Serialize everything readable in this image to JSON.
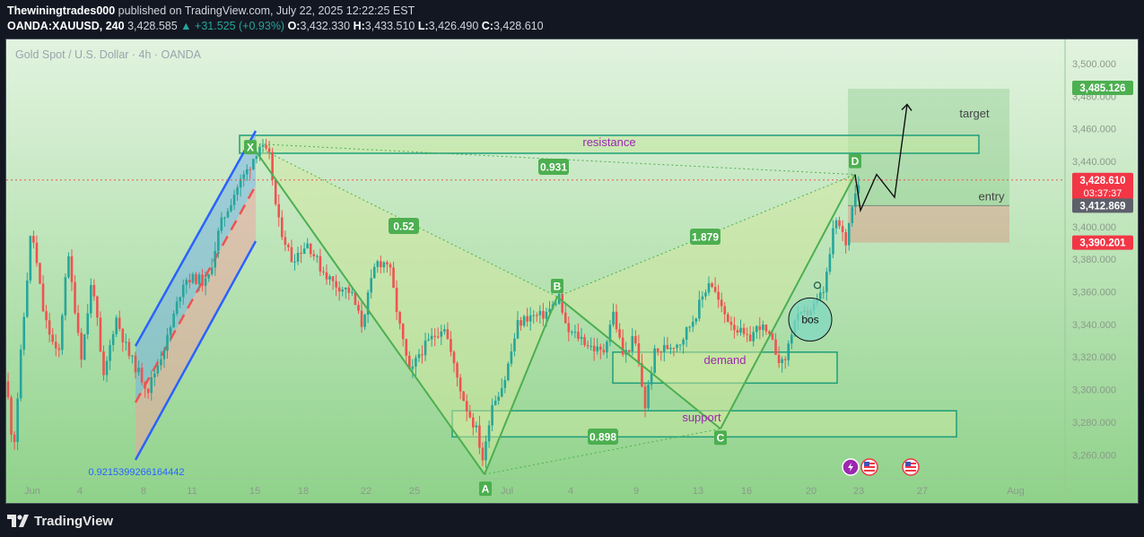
{
  "header": {
    "author": "Thewiningtrades000",
    "published_text": " published on TradingView.com, July 22, 2025 12:22:25 EST",
    "symbol": "OANDA:XAUUSD, 240",
    "last": "3,428.585",
    "change": "▲ +31.525 (+0.93%)",
    "o_label": "O:",
    "o_value": "3,432.330",
    "h_label": "H:",
    "h_value": "3,433.510",
    "l_label": "L:",
    "l_value": "3,426.490",
    "c_label": "C:",
    "c_value": "3,428.610"
  },
  "footer": {
    "brand": "TradingView"
  },
  "colors": {
    "bull": "#26a69a",
    "bear": "#ef5350",
    "pattern": "#4caf50",
    "zone_border": "#1e9e7a",
    "fib": "#2962ff",
    "annotation_purple": "#9c27b0"
  },
  "chart_data": {
    "type": "candlestick",
    "title": "Gold Spot / U.S. Dollar · 4h · OANDA",
    "x_ticks": [
      "Jun",
      "4",
      "8",
      "11",
      "15",
      "18",
      "22",
      "25",
      "Jul",
      "4",
      "9",
      "13",
      "16",
      "20",
      "23",
      "27",
      "Aug"
    ],
    "y_ticks": [
      "3,500.000",
      "3,480.000",
      "3,460.000",
      "3,440.000",
      "3,420.000",
      "3,400.000",
      "3,380.000",
      "3,360.000",
      "3,340.000",
      "3,320.000",
      "3,300.000",
      "3,280.000",
      "3,260.000"
    ],
    "ylim": [
      3245,
      3515
    ],
    "price_tags": [
      {
        "text": "3,485.126",
        "price": 3485.126,
        "color": "#4caf50"
      },
      {
        "text": "3,428.610",
        "sub": "03:37:37",
        "price": 3428.61,
        "color": "#f23645"
      },
      {
        "text": "3,412.869",
        "price": 3412.869,
        "color": "#5d606b"
      },
      {
        "text": "3,390.201",
        "price": 3390.201,
        "color": "#f23645"
      }
    ],
    "current_price": 3428.61,
    "pattern_points": [
      {
        "label": "X",
        "price": 3451
      },
      {
        "label": "A",
        "price": 3248
      },
      {
        "label": "B",
        "price": 3357
      },
      {
        "label": "C",
        "price": 3276
      },
      {
        "label": "D",
        "price": 3432
      }
    ],
    "ratios": [
      "0.931",
      "0.52",
      "1.879",
      "0.898"
    ],
    "fib_channel_label": "0.9215399266164442",
    "zones": [
      {
        "label": "resistance",
        "top": 3456,
        "bottom": 3445
      },
      {
        "label": "demand",
        "top": 3323,
        "bottom": 3304
      },
      {
        "label": "support",
        "top": 3287,
        "bottom": 3271
      }
    ],
    "labels": {
      "target": "target",
      "entry": "entry",
      "bos": "bos"
    },
    "trade": {
      "target": 3485.126,
      "entry": 3412.869,
      "stop": 3390.201
    },
    "candles_start": 3305,
    "candles_path": [
      [
        0,
        3305
      ],
      [
        8,
        3262
      ],
      [
        16,
        3320
      ],
      [
        28,
        3400
      ],
      [
        42,
        3345
      ],
      [
        58,
        3318
      ],
      [
        68,
        3385
      ],
      [
        84,
        3320
      ],
      [
        96,
        3370
      ],
      [
        108,
        3305
      ],
      [
        122,
        3345
      ],
      [
        136,
        3322
      ],
      [
        158,
        3300
      ],
      [
        180,
        3332
      ],
      [
        198,
        3368
      ],
      [
        212,
        3368
      ],
      [
        224,
        3365
      ],
      [
        238,
        3400
      ],
      [
        256,
        3423
      ],
      [
        270,
        3436
      ],
      [
        282,
        3450
      ],
      [
        294,
        3442
      ],
      [
        302,
        3405
      ],
      [
        318,
        3380
      ],
      [
        336,
        3390
      ],
      [
        350,
        3375
      ],
      [
        365,
        3365
      ],
      [
        384,
        3360
      ],
      [
        396,
        3340
      ],
      [
        412,
        3378
      ],
      [
        426,
        3378
      ],
      [
        438,
        3340
      ],
      [
        450,
        3308
      ],
      [
        460,
        3322
      ],
      [
        472,
        3330
      ],
      [
        488,
        3340
      ],
      [
        500,
        3312
      ],
      [
        512,
        3290
      ],
      [
        524,
        3275
      ],
      [
        532,
        3255
      ],
      [
        540,
        3290
      ],
      [
        555,
        3305
      ],
      [
        570,
        3340
      ],
      [
        582,
        3345
      ],
      [
        596,
        3345
      ],
      [
        608,
        3350
      ],
      [
        616,
        3358
      ],
      [
        624,
        3336
      ],
      [
        640,
        3332
      ],
      [
        650,
        3327
      ],
      [
        665,
        3322
      ],
      [
        676,
        3348
      ],
      [
        688,
        3320
      ],
      [
        700,
        3332
      ],
      [
        712,
        3290
      ],
      [
        722,
        3322
      ],
      [
        736,
        3326
      ],
      [
        752,
        3330
      ],
      [
        768,
        3346
      ],
      [
        784,
        3368
      ],
      [
        798,
        3348
      ],
      [
        810,
        3340
      ],
      [
        826,
        3330
      ],
      [
        840,
        3340
      ],
      [
        852,
        3330
      ],
      [
        866,
        3314
      ],
      [
        878,
        3342
      ],
      [
        890,
        3346
      ],
      [
        902,
        3352
      ],
      [
        912,
        3362
      ],
      [
        924,
        3405
      ],
      [
        936,
        3390
      ],
      [
        944,
        3420
      ],
      [
        952,
        3428.6
      ]
    ]
  }
}
